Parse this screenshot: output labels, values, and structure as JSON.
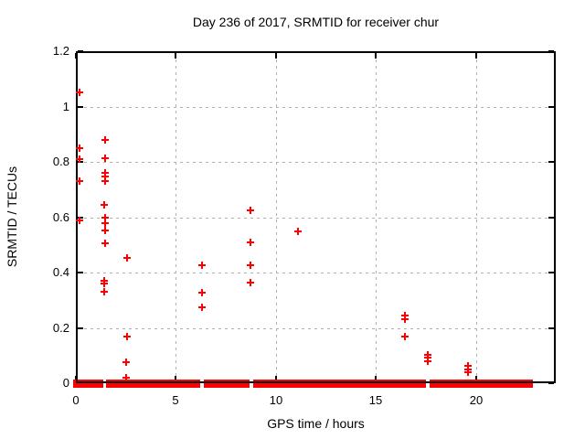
{
  "window": {
    "background": "#ffffff"
  },
  "chart_data": {
    "type": "scatter",
    "title": "Day 236 of 2017, SRMTID for receiver chur",
    "xlabel": "GPS time / hours",
    "ylabel": "SRMTID / TECUs",
    "xlim": [
      0,
      24
    ],
    "ylim": [
      0,
      1.2
    ],
    "xticks": {
      "values": [
        0,
        5,
        10,
        15,
        20
      ],
      "labels": [
        "0",
        "5",
        "10",
        "15",
        "20"
      ]
    },
    "yticks": {
      "values": [
        0,
        0.2,
        0.4,
        0.6,
        0.8,
        1.0,
        1.2
      ],
      "labels": [
        "0",
        "0.2",
        "0.4",
        "0.6",
        "0.8",
        "1",
        "1.2"
      ]
    },
    "grid": true,
    "legend": "none",
    "marker": "plus",
    "colors": {
      "series": "#ff0000",
      "grid": "#b0b0b0",
      "frame": "#000000",
      "text": "#000000",
      "background": "#ffffff"
    },
    "series": [
      {
        "name": "SRMTID",
        "color": "#ff0000",
        "points": [
          [
            0.2,
            1.05
          ],
          [
            0.2,
            0.85
          ],
          [
            0.2,
            0.81
          ],
          [
            0.2,
            0.73
          ],
          [
            0.2,
            0.59
          ],
          [
            1.45,
            0.88
          ],
          [
            1.45,
            0.815
          ],
          [
            1.45,
            0.76
          ],
          [
            1.45,
            0.748
          ],
          [
            1.45,
            0.732
          ],
          [
            1.4,
            0.645
          ],
          [
            1.45,
            0.597
          ],
          [
            1.45,
            0.578
          ],
          [
            1.45,
            0.553
          ],
          [
            1.45,
            0.507
          ],
          [
            1.42,
            0.372
          ],
          [
            1.42,
            0.36
          ],
          [
            1.43,
            0.33
          ],
          [
            2.55,
            0.452
          ],
          [
            2.55,
            0.17
          ],
          [
            2.52,
            0.077
          ],
          [
            2.52,
            0.02
          ],
          [
            6.3,
            0.425
          ],
          [
            6.3,
            0.328
          ],
          [
            6.3,
            0.273
          ],
          [
            8.75,
            0.625
          ],
          [
            8.75,
            0.508
          ],
          [
            8.75,
            0.427
          ],
          [
            8.75,
            0.365
          ],
          [
            11.1,
            0.548
          ],
          [
            16.45,
            0.245
          ],
          [
            16.45,
            0.23
          ],
          [
            16.45,
            0.17
          ],
          [
            17.6,
            0.103
          ],
          [
            17.6,
            0.092
          ],
          [
            17.6,
            0.081
          ],
          [
            19.63,
            0.062
          ],
          [
            19.63,
            0.051
          ],
          [
            19.63,
            0.04
          ]
        ]
      }
    ],
    "zero_band": {
      "y": 0,
      "note": "dense run of zero-valued points rendered as thick red band on x-axis",
      "segments_hours": [
        [
          -0.15,
          1.36
        ],
        [
          1.52,
          6.22
        ],
        [
          6.38,
          8.7
        ],
        [
          8.86,
          17.52
        ],
        [
          17.68,
          22.87
        ]
      ]
    }
  }
}
